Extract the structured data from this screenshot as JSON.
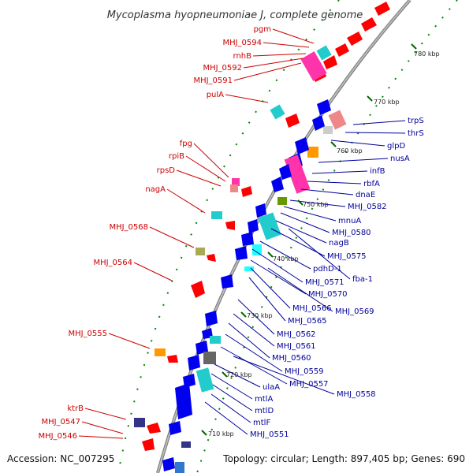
{
  "title": "Mycoplasma hyopneumoniae J, complete genome",
  "accession_text": "Accession: NC_007295",
  "summary_text": "Topology: circular; Length: 897,405 bp; Genes: 690",
  "ticks": [
    "780 kbp",
    "770 kbp",
    "760 kbp",
    "750 kbp",
    "740 kbp",
    "730 kbp",
    "720 kbp",
    "710 kbp"
  ],
  "left_labels": [
    "pgm",
    "MHJ_0594",
    "rnhB",
    "MHJ_0592",
    "MHJ_0591",
    "pulA",
    "fpg",
    "rpiB",
    "rpsD",
    "nagA",
    "MHJ_0568",
    "MHJ_0564",
    "MHJ_0555",
    "ktrB",
    "MHJ_0547",
    "MHJ_0546"
  ],
  "right_labels": [
    "trpS",
    "thrS",
    "glpD",
    "nusA",
    "infB",
    "rbfA",
    "dnaE",
    "MHJ_0582",
    "mnuA",
    "MHJ_0580",
    "nagB",
    "MHJ_0575",
    "pdhD-1",
    "fba-1",
    "MHJ_0571",
    "MHJ_0570",
    "MHJ_0566",
    "MHJ_0569",
    "MHJ_0565",
    "MHJ_0562",
    "MHJ_0561",
    "MHJ_0560",
    "MHJ_0559",
    "MHJ_0557",
    "MHJ_0558",
    "ulaA",
    "mtlA",
    "mtlD",
    "mtlF",
    "MHJ_0551"
  ],
  "colors": {
    "forward_gene": "#ff0000",
    "reverse_gene": "#0000ff",
    "rrna_magenta": "#ff33aa",
    "cyan_feature": "#22dddd",
    "orange_feature": "#ff9900",
    "left_label": "#cc0000",
    "right_label": "#000099",
    "backbone": "#999999",
    "gc_dots": "#008800"
  }
}
